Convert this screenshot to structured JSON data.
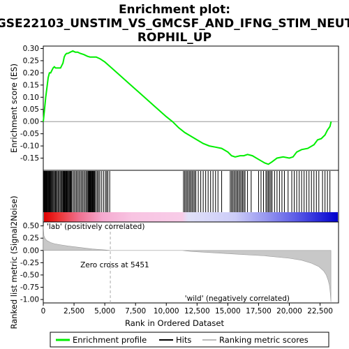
{
  "chart_data": {
    "type": "line",
    "title_lines": [
      "Enrichment plot:",
      "GSE22103_UNSTIM_VS_GMCSF_AND_IFNG_STIM_NEUT",
      "ROPHIL_UP"
    ],
    "xlabel": "Rank in Ordered Dataset",
    "ylabel_top": "Enrichment score (ES)",
    "ylabel_bottom": "Ranked list metric (Signal2Noise)",
    "x_ticks": [
      "0",
      "2,500",
      "5,000",
      "7,500",
      "10,000",
      "12,500",
      "15,000",
      "17,500",
      "20,000",
      "22,500"
    ],
    "x_tick_values": [
      0,
      2500,
      5000,
      7500,
      10000,
      12500,
      15000,
      17500,
      20000,
      22500
    ],
    "xlim": [
      0,
      24000
    ],
    "es_yticks": [
      "0.30",
      "0.25",
      "0.20",
      "0.15",
      "0.10",
      "0.05",
      "0.00",
      "-0.05",
      "-0.10",
      "-0.15"
    ],
    "es_ytick_values": [
      0.3,
      0.25,
      0.2,
      0.15,
      0.1,
      0.05,
      0.0,
      -0.05,
      -0.1,
      -0.15
    ],
    "es_ylim": [
      -0.2,
      0.31
    ],
    "metric_yticks": [
      "0.50",
      "0.25",
      "0.00",
      "-0.25",
      "-0.50",
      "-0.75",
      "-1.00"
    ],
    "metric_ytick_values": [
      0.5,
      0.25,
      0.0,
      -0.25,
      -0.5,
      -0.75,
      -1.0
    ],
    "metric_ylim": [
      -1.07,
      0.58
    ],
    "enrichment_profile": {
      "name": "Enrichment profile",
      "color": "#00ee00",
      "x": [
        0,
        100,
        200,
        300,
        400,
        500,
        600,
        700,
        800,
        900,
        1000,
        1200,
        1400,
        1600,
        1700,
        1800,
        1900,
        2000,
        2200,
        2400,
        2600,
        2800,
        3000,
        3300,
        3600,
        3800,
        4000,
        4300,
        4600,
        5000,
        5451,
        6000,
        7000,
        8000,
        9000,
        10000,
        10500,
        11000,
        11500,
        12000,
        12500,
        13000,
        13500,
        14000,
        14500,
        15000,
        15300,
        15600,
        16000,
        16300,
        16600,
        17000,
        17500,
        18000,
        18300,
        18600,
        19000,
        19500,
        20000,
        20300,
        20600,
        21000,
        21500,
        22000,
        22300,
        22600,
        22900,
        23100,
        23300,
        23400
      ],
      "y": [
        0.0,
        0.05,
        0.1,
        0.14,
        0.18,
        0.2,
        0.2,
        0.21,
        0.22,
        0.225,
        0.22,
        0.22,
        0.22,
        0.24,
        0.265,
        0.275,
        0.28,
        0.28,
        0.285,
        0.29,
        0.285,
        0.285,
        0.28,
        0.275,
        0.268,
        0.265,
        0.265,
        0.265,
        0.258,
        0.245,
        0.225,
        0.2,
        0.155,
        0.11,
        0.065,
        0.02,
        0.0,
        -0.025,
        -0.045,
        -0.06,
        -0.075,
        -0.09,
        -0.1,
        -0.105,
        -0.11,
        -0.125,
        -0.14,
        -0.145,
        -0.14,
        -0.14,
        -0.135,
        -0.14,
        -0.155,
        -0.17,
        -0.175,
        -0.165,
        -0.15,
        -0.145,
        -0.15,
        -0.145,
        -0.125,
        -0.115,
        -0.11,
        -0.095,
        -0.075,
        -0.07,
        -0.055,
        -0.035,
        -0.02,
        0.0
      ]
    },
    "hits_label": "Hits",
    "hit_ranks": [
      20,
      60,
      110,
      150,
      190,
      230,
      280,
      330,
      380,
      430,
      480,
      540,
      600,
      660,
      720,
      780,
      850,
      920,
      990,
      1060,
      1130,
      1210,
      1290,
      1370,
      1450,
      1520,
      1590,
      1650,
      1700,
      1750,
      1800,
      1850,
      1900,
      1950,
      2000,
      2060,
      2120,
      2180,
      2240,
      2300,
      2400,
      2500,
      2600,
      2700,
      2800,
      2900,
      3000,
      3100,
      3200,
      3300,
      3400,
      3500,
      3580,
      3650,
      3700,
      3750,
      3800,
      3850,
      3900,
      3950,
      4000,
      4050,
      4100,
      4150,
      4200,
      4300,
      4400,
      4500,
      4600,
      4750,
      4900,
      5050,
      5150,
      5250,
      5400,
      11400,
      11500,
      11600,
      11700,
      11800,
      11900,
      12000,
      12100,
      12200,
      12300,
      12400,
      12600,
      12800,
      13000,
      13200,
      13400,
      13600,
      13800,
      14000,
      14200,
      14500,
      15200,
      15300,
      15400,
      15500,
      15600,
      15700,
      15800,
      15900,
      16000,
      16100,
      16200,
      16300,
      16400,
      16600,
      16900,
      17500,
      17700,
      17900,
      18100,
      18200,
      18300,
      18400,
      18500,
      18600,
      18800,
      19000,
      19200,
      19400,
      19600,
      19900,
      20200,
      20400,
      20600,
      20800,
      21000,
      21200,
      21400,
      21600,
      21800,
      22000,
      22200,
      22400,
      22700,
      22900,
      23100,
      23300
    ],
    "metric_profile": {
      "name": "Ranking metric scores",
      "color": "#bbbbbb",
      "x": [
        0,
        50,
        150,
        300,
        600,
        1000,
        1500,
        2000,
        3000,
        4000,
        5000,
        5451,
        6000,
        8000,
        10000,
        11300,
        12000,
        14000,
        16000,
        18000,
        20000,
        21000,
        21800,
        22400,
        22800,
        23000,
        23150,
        23250,
        23300,
        23340,
        23380
      ],
      "y": [
        0.5,
        0.3,
        0.24,
        0.2,
        0.16,
        0.13,
        0.11,
        0.09,
        0.06,
        0.03,
        0.01,
        0.0,
        0.0,
        0.0,
        0.0,
        0.0,
        -0.02,
        -0.05,
        -0.08,
        -0.11,
        -0.16,
        -0.2,
        -0.26,
        -0.33,
        -0.42,
        -0.5,
        -0.6,
        -0.7,
        -0.8,
        -0.9,
        -1.05
      ]
    },
    "zero_cross_label": "Zero cross at 5451",
    "zero_cross_rank": 5451,
    "pos_label": "'lab' (positively correlated)",
    "neg_label": "'wild' (negatively correlated)",
    "colors": {
      "pos_label": "#ff0000",
      "neg_label": "#0000ff",
      "hits": "#000000"
    }
  }
}
